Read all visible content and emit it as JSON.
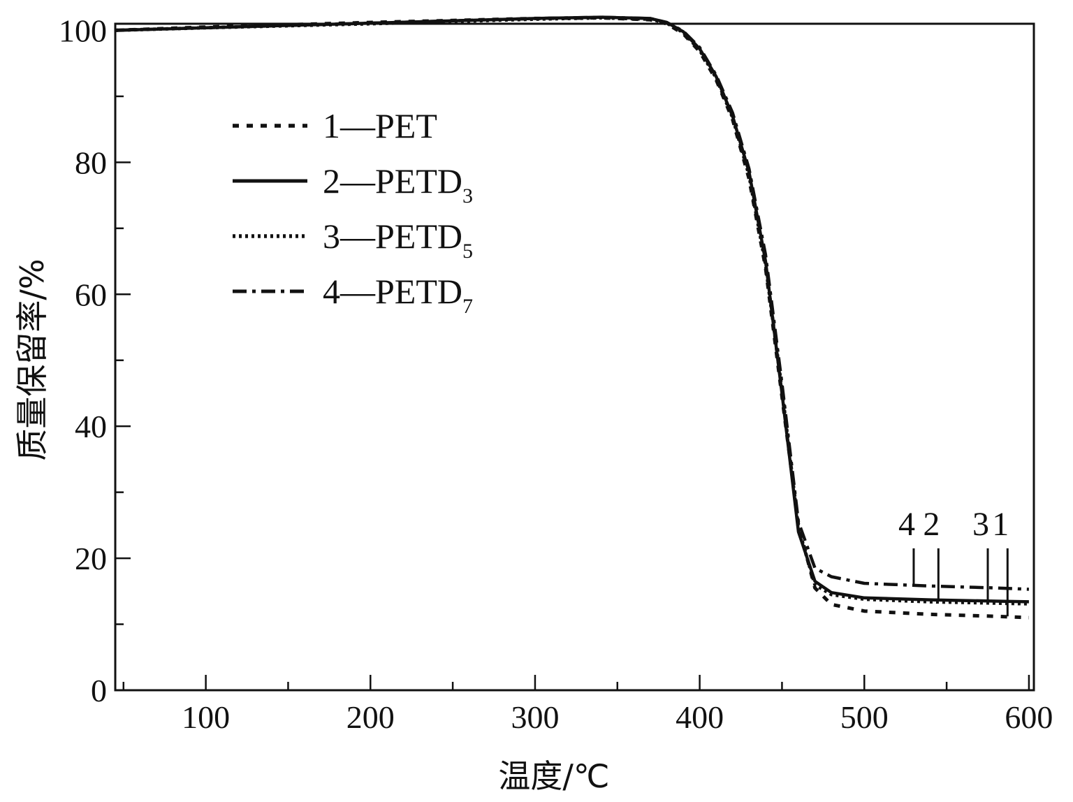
{
  "chart_data": {
    "type": "line",
    "xlabel": "温度/℃",
    "ylabel": "质量保留率/%",
    "xlim": [
      45,
      603
    ],
    "ylim": [
      0,
      101
    ],
    "x_ticks": [
      100,
      200,
      300,
      400,
      500,
      600
    ],
    "y_ticks": [
      0,
      20,
      40,
      60,
      80,
      100
    ],
    "grid": false,
    "legend_position": "upper-left",
    "series": [
      {
        "name": "1—PET",
        "legend_main": "1—PET",
        "legend_sub": "",
        "curve_label": "1",
        "style": "dashed",
        "x": [
          45,
          100,
          200,
          300,
          340,
          370,
          380,
          390,
          400,
          410,
          420,
          430,
          440,
          450,
          460,
          470,
          480,
          500,
          540,
          580,
          600
        ],
        "y": [
          100,
          100.5,
          101.2,
          101.8,
          101.9,
          101.6,
          101.0,
          99.5,
          96.8,
          92.5,
          86.5,
          77.5,
          64.0,
          44.5,
          25.0,
          15.5,
          13.0,
          12.0,
          11.5,
          11.2,
          11.0
        ]
      },
      {
        "name": "2—PETD3",
        "legend_main": "2—PETD",
        "legend_sub": "3",
        "curve_label": "2",
        "style": "solid",
        "x": [
          45,
          100,
          200,
          300,
          340,
          370,
          380,
          390,
          400,
          410,
          420,
          430,
          440,
          450,
          460,
          470,
          480,
          500,
          540,
          580,
          600
        ],
        "y": [
          100,
          100.4,
          101.1,
          101.8,
          102.0,
          101.8,
          101.2,
          99.8,
          97.2,
          93.0,
          87.0,
          78.5,
          65.0,
          45.0,
          24.0,
          16.5,
          14.8,
          14.0,
          13.7,
          13.5,
          13.4
        ]
      },
      {
        "name": "3—PETD5",
        "legend_main": "3—PETD",
        "legend_sub": "5",
        "curve_label": "3",
        "style": "dotted",
        "x": [
          45,
          100,
          200,
          300,
          340,
          370,
          380,
          390,
          400,
          410,
          420,
          430,
          440,
          450,
          460,
          470,
          480,
          500,
          540,
          580,
          600
        ],
        "y": [
          100,
          100.4,
          101.0,
          101.7,
          101.9,
          101.7,
          101.1,
          99.7,
          97.0,
          92.8,
          86.8,
          78.0,
          64.5,
          45.5,
          24.5,
          16.0,
          14.5,
          13.8,
          13.4,
          13.2,
          13.1
        ]
      },
      {
        "name": "4—PETD7",
        "legend_main": "4—PETD",
        "legend_sub": "7",
        "curve_label": "4",
        "style": "dashdot",
        "x": [
          45,
          100,
          200,
          300,
          340,
          370,
          380,
          390,
          400,
          410,
          420,
          430,
          440,
          450,
          460,
          470,
          480,
          500,
          540,
          580,
          600
        ],
        "y": [
          100,
          100.4,
          101.1,
          101.8,
          102.0,
          101.8,
          101.2,
          99.9,
          97.4,
          93.2,
          87.5,
          79.0,
          66.0,
          46.5,
          25.5,
          18.5,
          17.2,
          16.2,
          15.8,
          15.5,
          15.3
        ]
      }
    ],
    "curve_label_markers": [
      {
        "label": "4",
        "x": 530,
        "y": 15.9
      },
      {
        "label": "2",
        "x": 545,
        "y": 13.8
      },
      {
        "label": "3",
        "x": 575,
        "y": 13.2
      },
      {
        "label": "1",
        "x": 587,
        "y": 11.2
      }
    ]
  }
}
